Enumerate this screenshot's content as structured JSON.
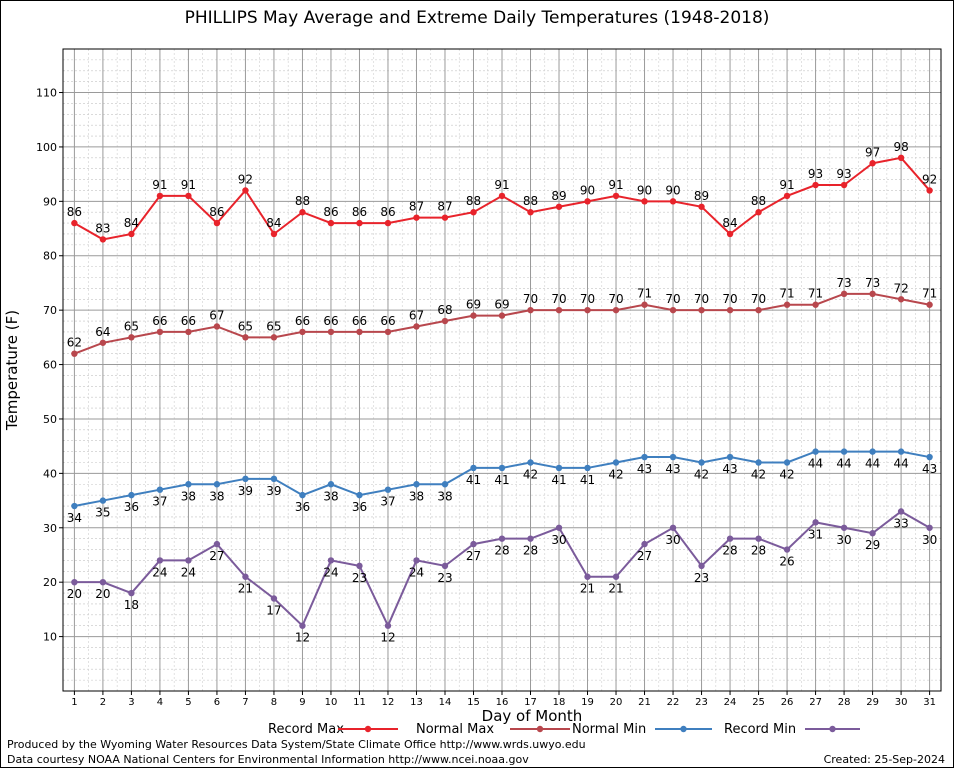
{
  "title": "PHILLIPS May Average and Extreme Daily Temperatures (1948-2018)",
  "footer": {
    "line1": "Produced by the Wyoming Water Resources Data System/State Climate Office http://www.wrds.uwyo.edu",
    "line2": "Data courtesy NOAA National Centers for Environmental Information http://www.ncei.noaa.gov",
    "created": "Created: 25-Sep-2024"
  },
  "chart_data": {
    "type": "line",
    "title": "PHILLIPS May Average and Extreme Daily Temperatures (1948-2018)",
    "xlabel": "Day of Month",
    "ylabel": "Temperature (F)",
    "x": [
      1,
      2,
      3,
      4,
      5,
      6,
      7,
      8,
      9,
      10,
      11,
      12,
      13,
      14,
      15,
      16,
      17,
      18,
      19,
      20,
      21,
      22,
      23,
      24,
      25,
      26,
      27,
      28,
      29,
      30,
      31
    ],
    "xlim": [
      0.6,
      31.4
    ],
    "ylim": [
      0,
      118
    ],
    "yticks": [
      10,
      20,
      30,
      40,
      50,
      60,
      70,
      80,
      90,
      100,
      110
    ],
    "grid": true,
    "legend_position": "bottom",
    "series": [
      {
        "name": "Record Max",
        "color": "#e8232b",
        "values": [
          86,
          83,
          84,
          91,
          91,
          86,
          92,
          84,
          88,
          86,
          86,
          86,
          87,
          87,
          88,
          91,
          88,
          89,
          90,
          91,
          90,
          90,
          89,
          84,
          88,
          91,
          93,
          93,
          97,
          98,
          92
        ]
      },
      {
        "name": "Normal Max",
        "color": "#b8474d",
        "values": [
          62,
          64,
          65,
          66,
          66,
          67,
          65,
          65,
          66,
          66,
          66,
          66,
          67,
          68,
          69,
          69,
          70,
          70,
          70,
          70,
          71,
          70,
          70,
          70,
          70,
          71,
          71,
          73,
          73,
          72,
          71
        ]
      },
      {
        "name": "Normal Min",
        "color": "#3f7fbf",
        "values": [
          34,
          35,
          36,
          37,
          38,
          38,
          39,
          39,
          36,
          38,
          36,
          37,
          38,
          38,
          41,
          41,
          42,
          41,
          41,
          42,
          43,
          43,
          42,
          43,
          42,
          42,
          44,
          44,
          44,
          44,
          43
        ]
      },
      {
        "name": "Record Min",
        "color": "#7b5b9b",
        "values": [
          20,
          20,
          18,
          24,
          24,
          27,
          21,
          17,
          12,
          24,
          23,
          12,
          24,
          23,
          27,
          28,
          28,
          30,
          21,
          21,
          27,
          30,
          23,
          28,
          28,
          26,
          31,
          30,
          29,
          33,
          30
        ]
      }
    ]
  }
}
